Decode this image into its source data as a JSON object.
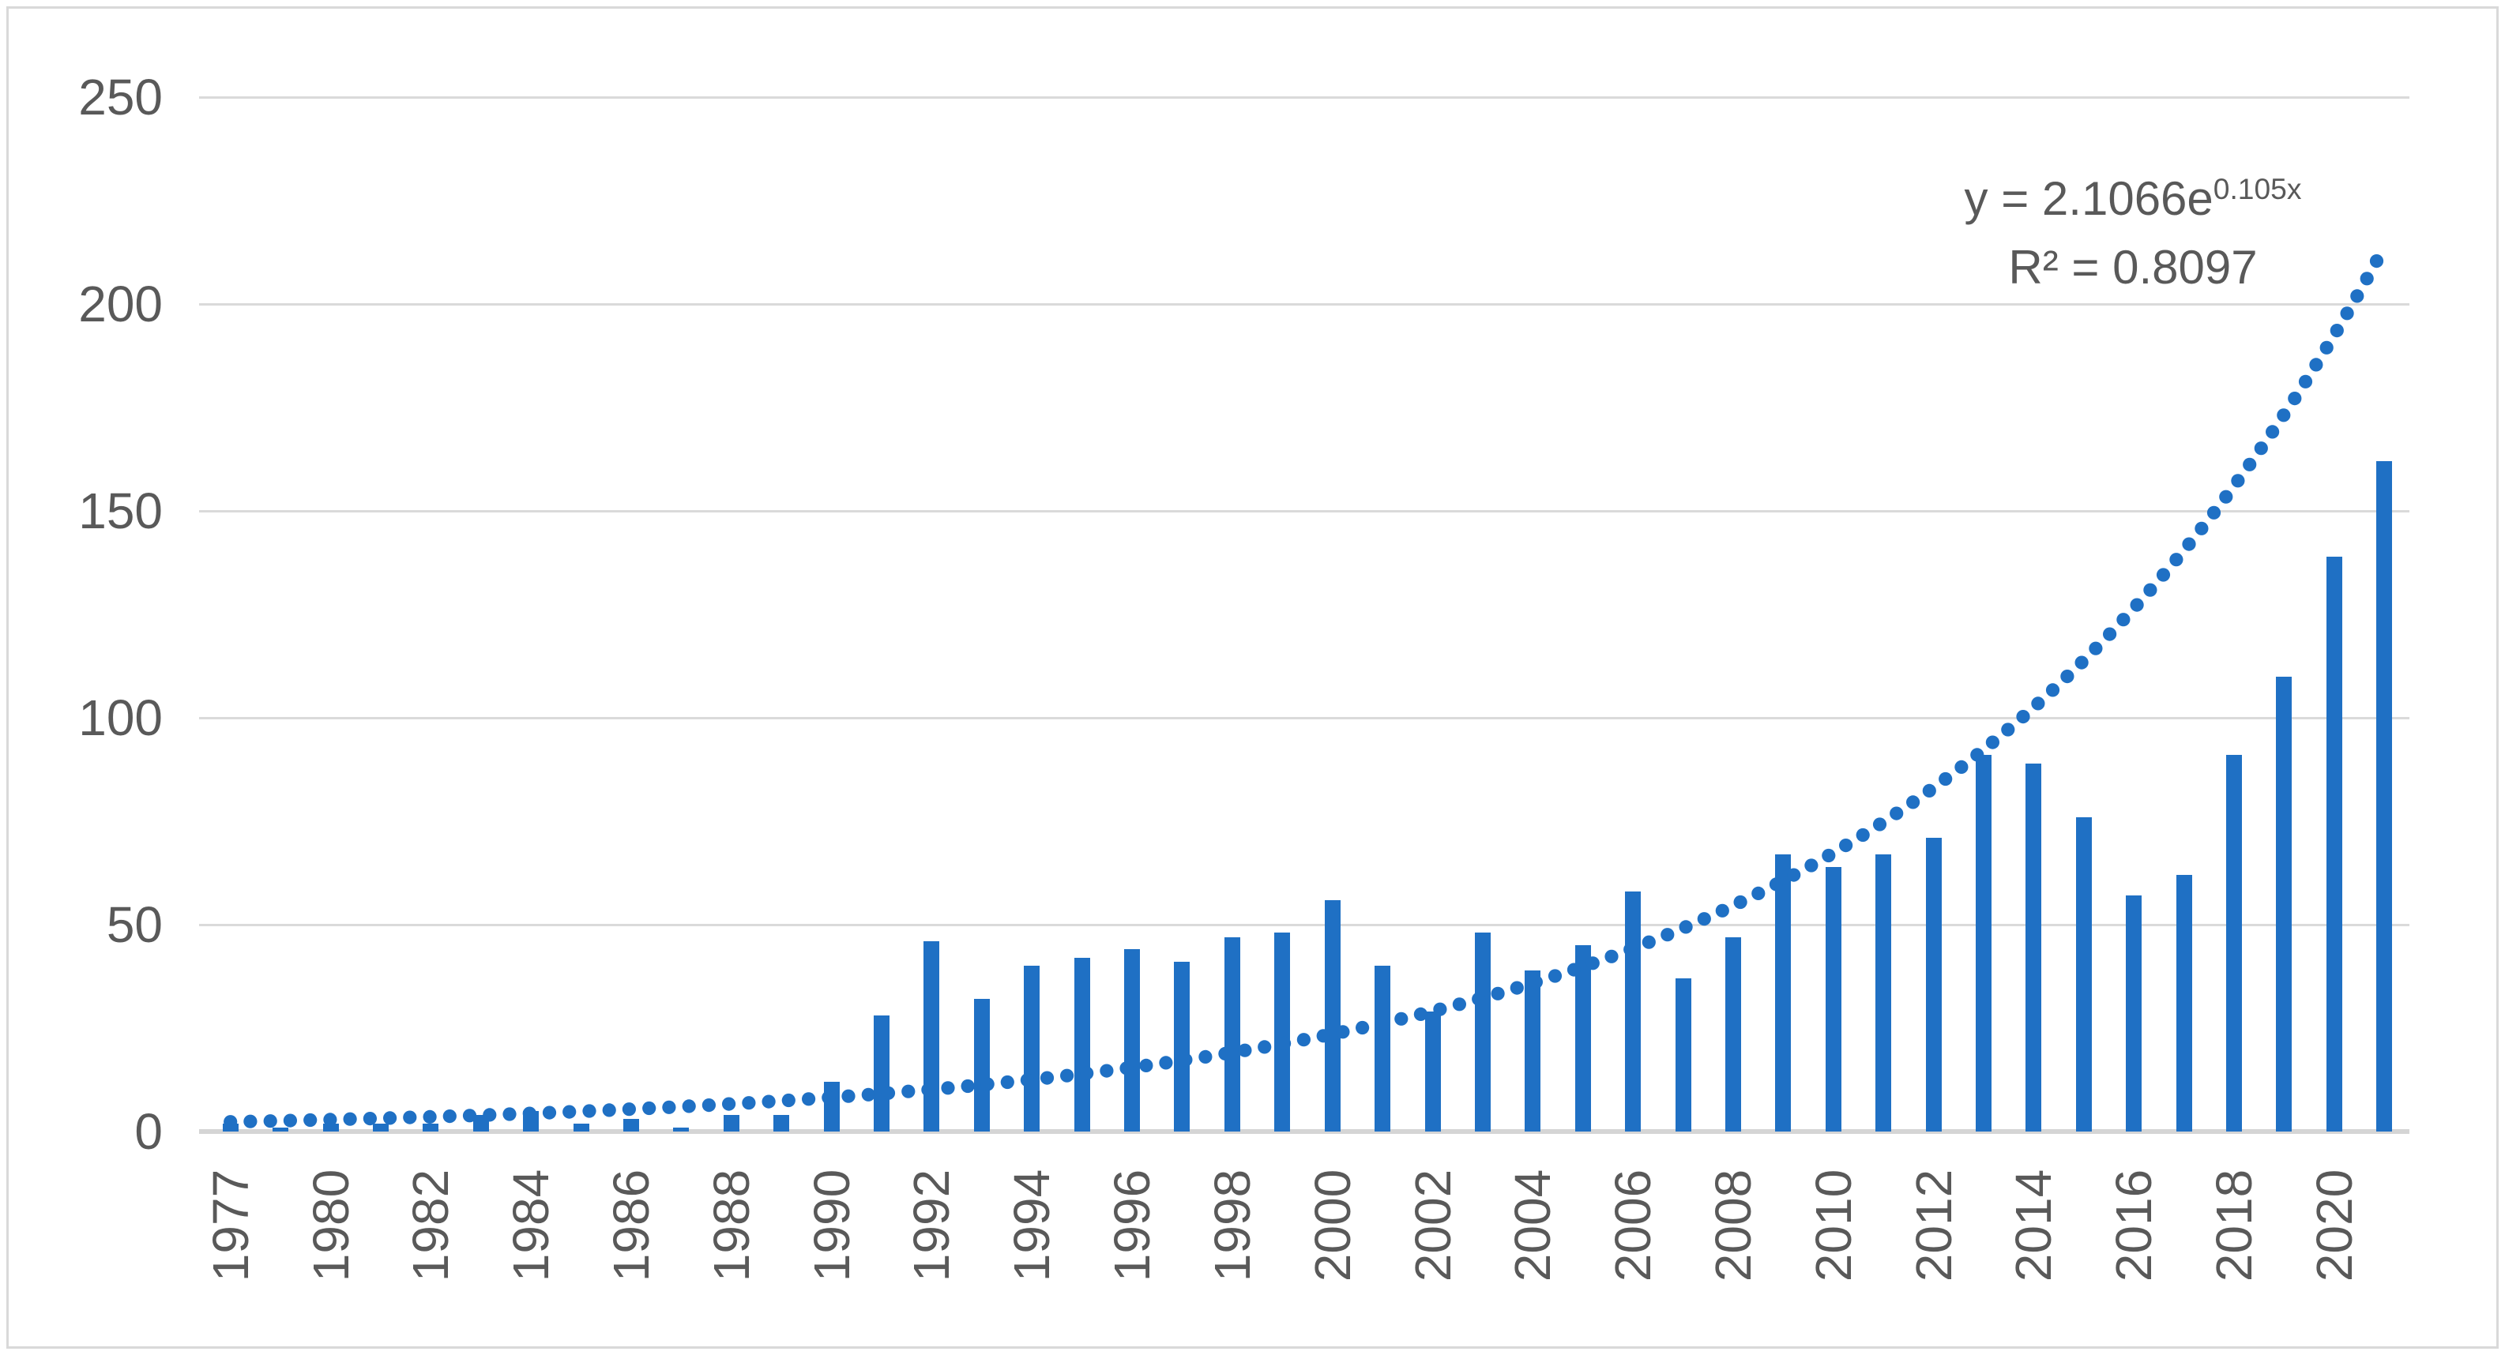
{
  "chart_data": {
    "type": "bar",
    "title": "",
    "xlabel": "",
    "ylabel": "",
    "categories": [
      1977,
      1979,
      1980,
      1981,
      1982,
      1983,
      1984,
      1985,
      1986,
      1987,
      1988,
      1989,
      1990,
      1991,
      1992,
      1993,
      1994,
      1995,
      1996,
      1997,
      1998,
      1999,
      2000,
      2001,
      2002,
      2003,
      2004,
      2005,
      2006,
      2007,
      2008,
      2009,
      2010,
      2011,
      2012,
      2013,
      2014,
      2015,
      2016,
      2017,
      2018,
      2019,
      2020,
      2021
    ],
    "values": [
      2,
      1,
      2,
      2,
      2,
      4,
      5,
      2,
      3,
      1,
      4,
      4,
      12,
      28,
      46,
      32,
      40,
      42,
      44,
      41,
      47,
      48,
      56,
      40,
      29,
      48,
      39,
      45,
      58,
      37,
      47,
      67,
      64,
      67,
      71,
      91,
      89,
      76,
      57,
      62,
      91,
      110,
      139,
      162
    ],
    "x_tick_labels": [
      "1977",
      "1980",
      "1982",
      "1984",
      "1986",
      "1988",
      "1990",
      "1992",
      "1994",
      "1996",
      "1998",
      "2000",
      "2002",
      "2004",
      "2006",
      "2008",
      "2010",
      "2012",
      "2014",
      "2016",
      "2018",
      "2020"
    ],
    "x_tick_every": 2,
    "y_ticks": [
      0,
      50,
      100,
      150,
      200,
      250
    ],
    "ylim": [
      0,
      250
    ],
    "grid": "horizontal",
    "legend": "none",
    "bar_color": "#1f70c4",
    "gridline_color": "#dadada",
    "baseline_color": "#d5d5d5",
    "label_color": "#595959",
    "frame_color": "#d9d9d9",
    "trendline": {
      "type": "exponential",
      "a": 2.1066,
      "b": 0.105,
      "style": "dotted",
      "color": "#1f70c4",
      "equation_prefix": "y = 2.1066e",
      "equation_exponent": "0.105x",
      "r_squared_label": "R² = 0.8097"
    }
  }
}
